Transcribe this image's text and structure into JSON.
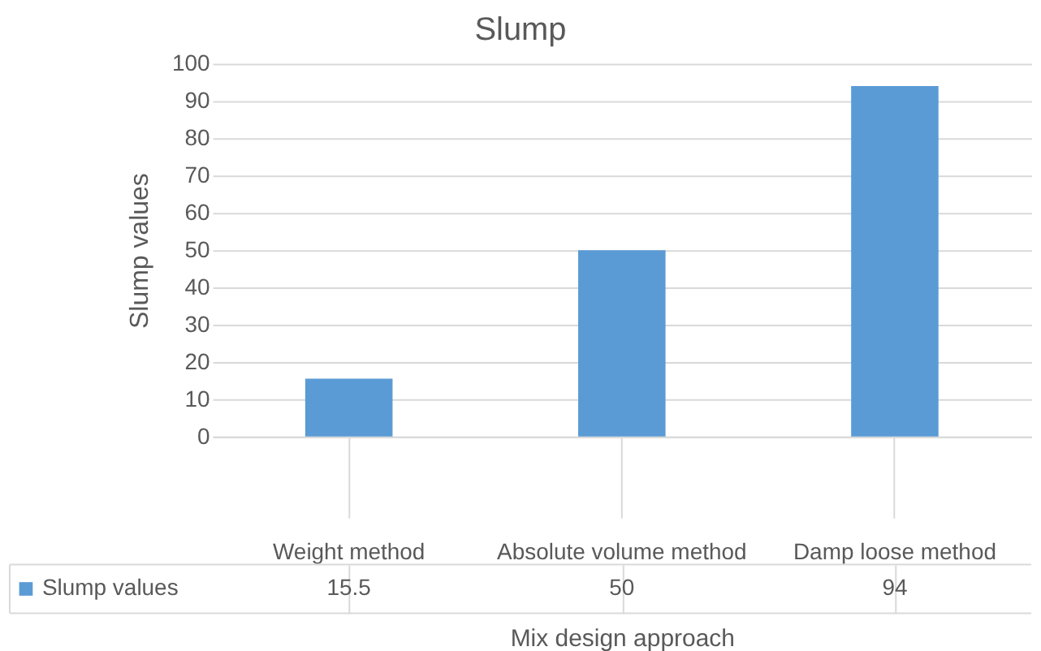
{
  "chart_data": {
    "type": "bar",
    "title": "Slump",
    "xlabel": "Mix design approach",
    "ylabel": "Slump values",
    "categories": [
      "Weight method",
      "Absolute volume method",
      "Damp loose method"
    ],
    "series": [
      {
        "name": "Slump values",
        "color": "#5b9bd5",
        "values": [
          15.5,
          50,
          94
        ]
      }
    ],
    "ylim": [
      0,
      100
    ],
    "yticks": [
      0,
      10,
      20,
      30,
      40,
      50,
      60,
      70,
      80,
      90,
      100
    ],
    "grid": "y",
    "legend": "bottom",
    "data_labels": true
  }
}
